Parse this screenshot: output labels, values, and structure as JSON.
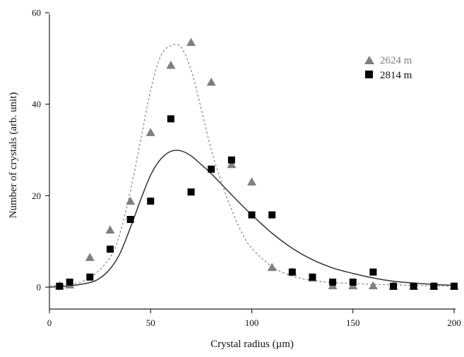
{
  "chart_data": {
    "type": "scatter",
    "title": "",
    "xlabel": "Crystal radius (µm)",
    "ylabel": "Number of crystals (arb. unit)",
    "xlim": [
      0,
      200
    ],
    "ylim": [
      -5,
      60
    ],
    "xticks": [
      0,
      50,
      100,
      150,
      200
    ],
    "yticks": [
      0,
      20,
      40,
      60
    ],
    "grid": false,
    "legend_position": "top-right",
    "series": [
      {
        "name": "2624 m",
        "marker": "triangle",
        "color": "#7f7f7f",
        "x": [
          5,
          10,
          20,
          30,
          40,
          50,
          60,
          70,
          80,
          90,
          100,
          110,
          120,
          130,
          140,
          150,
          160,
          170,
          180,
          190,
          200
        ],
        "y": [
          0.3,
          0.5,
          6.5,
          12.5,
          18.8,
          33.8,
          48.5,
          53.5,
          44.8,
          26.8,
          23,
          4.3,
          3.3,
          2,
          0.3,
          0.3,
          0.3,
          0.2,
          0.2,
          0.2,
          0.2
        ],
        "fit_curve": {
          "style": "dashed",
          "color": "#8c8c8c",
          "x": [
            0,
            10,
            20,
            30,
            35,
            40,
            45,
            50,
            55,
            60,
            65,
            70,
            75,
            80,
            85,
            90,
            95,
            100,
            110,
            120,
            130,
            140,
            150,
            160,
            170,
            180,
            190,
            200
          ],
          "y": [
            0.3,
            0.6,
            2,
            6.5,
            12,
            21,
            32,
            43,
            50.5,
            52.8,
            52.5,
            47.5,
            39,
            30,
            23,
            17,
            12,
            8.5,
            4.5,
            2.4,
            1.5,
            1,
            0.8,
            0.6,
            0.5,
            0.4,
            0.3,
            0.2
          ]
        }
      },
      {
        "name": "2814 m",
        "marker": "square",
        "color": "#000000",
        "x": [
          5,
          10,
          20,
          30,
          40,
          50,
          60,
          70,
          80,
          90,
          100,
          110,
          120,
          130,
          140,
          150,
          160,
          170,
          180,
          190,
          200
        ],
        "y": [
          0.2,
          1.1,
          2.2,
          8.3,
          14.8,
          18.8,
          36.8,
          20.8,
          25.8,
          27.8,
          15.8,
          15.8,
          3.3,
          2.2,
          1.1,
          1.1,
          3.3,
          0.2,
          0.2,
          0.2,
          0.2
        ],
        "fit_curve": {
          "style": "solid",
          "color": "#333333",
          "x": [
            0,
            10,
            20,
            25,
            30,
            35,
            40,
            45,
            50,
            55,
            60,
            65,
            70,
            75,
            80,
            90,
            100,
            110,
            120,
            130,
            140,
            150,
            160,
            170,
            180,
            190,
            200
          ],
          "y": [
            0,
            0.3,
            1,
            2,
            4,
            7.5,
            13,
            19,
            24.5,
            28,
            29.7,
            29.8,
            28.7,
            26.8,
            24.8,
            20.2,
            15.8,
            11.8,
            8.5,
            6,
            4.2,
            3,
            2,
            1.3,
            0.9,
            0.6,
            0.4
          ]
        }
      }
    ]
  }
}
